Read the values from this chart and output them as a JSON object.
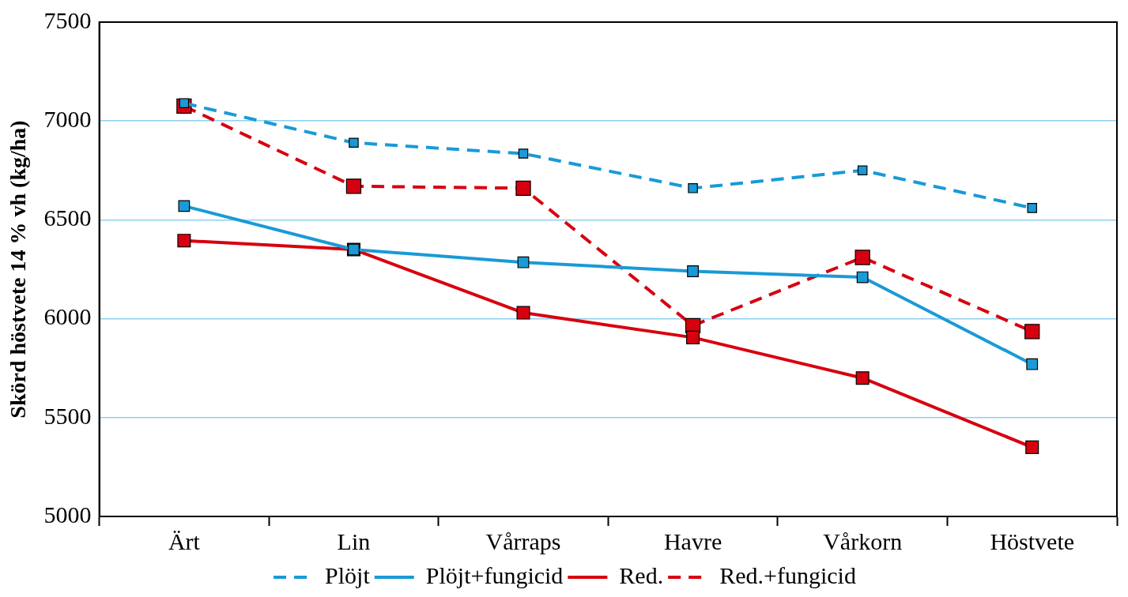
{
  "chart_data": {
    "type": "line",
    "ylabel": "Skörd höstvete 14 % vh (kg/ha)",
    "categories": [
      "Ärt",
      "Lin",
      "Vårraps",
      "Havre",
      "Vårkorn",
      "Höstvete"
    ],
    "series": [
      {
        "name": "Plöjt",
        "color": "#1a9ad6",
        "line_style": "dashed",
        "values": [
          7090,
          6890,
          6835,
          6660,
          6750,
          6560
        ]
      },
      {
        "name": "Plöjt+fungicid",
        "color": "#1a9ad6",
        "line_style": "solid",
        "values": [
          6570,
          6350,
          6285,
          6240,
          6210,
          5770
        ]
      },
      {
        "name": "Red.",
        "color": "#d7000f",
        "line_style": "solid",
        "values": [
          6395,
          6350,
          6030,
          5905,
          5700,
          5350
        ]
      },
      {
        "name": "Red.+fungicid",
        "color": "#d7000f",
        "line_style": "dashed",
        "values": [
          7075,
          6670,
          6660,
          5965,
          6310,
          5935
        ]
      }
    ],
    "ylim": [
      5000,
      7500
    ],
    "yticks": [
      5000,
      5500,
      6000,
      6500,
      7000,
      7500
    ],
    "grid": "y",
    "legend": "bottom",
    "marker": "square"
  }
}
